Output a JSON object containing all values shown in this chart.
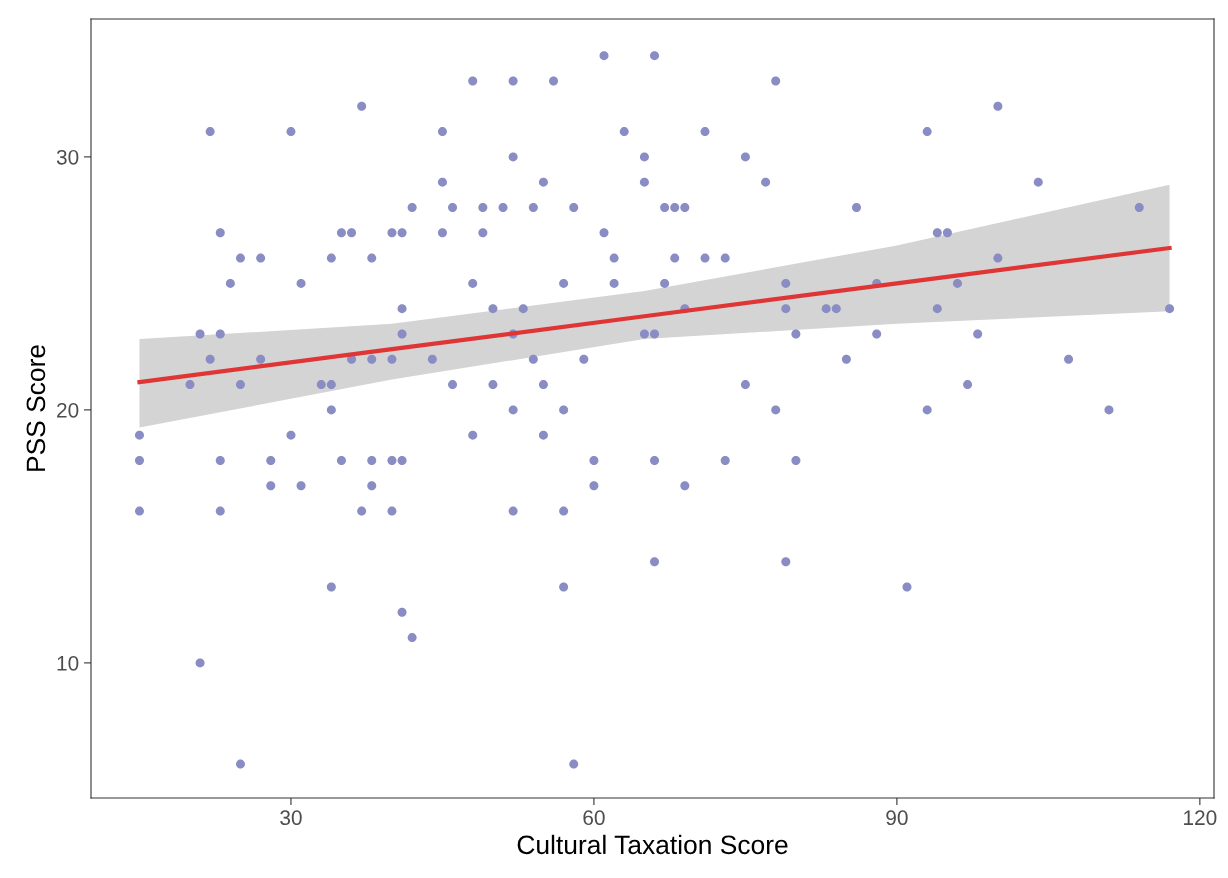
{
  "chart_data": {
    "type": "scatter",
    "xlabel": "Cultural Taxation Score",
    "ylabel": "PSS Score",
    "xlim": [
      10.2,
      121.4
    ],
    "ylim": [
      4.66,
      35.45
    ],
    "xticks": [
      30,
      60,
      90,
      120
    ],
    "yticks": [
      10,
      20,
      30
    ],
    "grid": false,
    "legend": false,
    "marker": "circle",
    "series": [
      {
        "color": "#8a8cc4",
        "x": [
          61,
          66,
          48,
          52,
          56,
          78,
          37,
          100,
          22,
          30,
          45,
          63,
          71,
          93,
          52,
          65,
          75,
          45,
          55,
          65,
          77,
          104,
          42,
          46,
          49,
          51,
          54,
          58,
          67,
          68,
          69,
          86,
          114,
          23,
          35,
          36,
          40,
          41,
          45,
          49,
          61,
          94,
          95,
          25,
          27,
          34,
          38,
          62,
          68,
          71,
          73,
          100,
          24,
          31,
          48,
          57,
          62,
          67,
          79,
          88,
          96,
          41,
          50,
          53,
          69,
          79,
          83,
          84,
          94,
          117,
          21,
          23,
          41,
          52,
          65,
          66,
          80,
          88,
          98,
          22,
          27,
          36,
          38,
          40,
          44,
          54,
          59,
          85,
          107,
          20,
          25,
          33,
          34,
          46,
          50,
          55,
          75,
          97,
          34,
          52,
          57,
          78,
          93,
          111,
          15,
          30,
          48,
          55,
          15,
          23,
          28,
          35,
          38,
          40,
          41,
          60,
          66,
          73,
          80,
          28,
          31,
          38,
          60,
          69,
          15,
          23,
          37,
          40,
          52,
          57,
          66,
          79,
          34,
          57,
          91,
          41,
          42,
          21,
          25,
          58
        ],
        "values": [
          34,
          34,
          33,
          33,
          33,
          33,
          32,
          32,
          31,
          31,
          31,
          31,
          31,
          31,
          30,
          30,
          30,
          29,
          29,
          29,
          29,
          29,
          28,
          28,
          28,
          28,
          28,
          28,
          28,
          28,
          28,
          28,
          28,
          27,
          27,
          27,
          27,
          27,
          27,
          27,
          27,
          27,
          27,
          26,
          26,
          26,
          26,
          26,
          26,
          26,
          26,
          26,
          25,
          25,
          25,
          25,
          25,
          25,
          25,
          25,
          25,
          24,
          24,
          24,
          24,
          24,
          24,
          24,
          24,
          24,
          23,
          23,
          23,
          23,
          23,
          23,
          23,
          23,
          23,
          22,
          22,
          22,
          22,
          22,
          22,
          22,
          22,
          22,
          22,
          21,
          21,
          21,
          21,
          21,
          21,
          21,
          21,
          21,
          20,
          20,
          20,
          20,
          20,
          20,
          19,
          19,
          19,
          19,
          18,
          18,
          18,
          18,
          18,
          18,
          18,
          18,
          18,
          18,
          18,
          17,
          17,
          17,
          17,
          17,
          16,
          16,
          16,
          16,
          16,
          16,
          14,
          14,
          13,
          13,
          13,
          12,
          11,
          10,
          6,
          6
        ]
      },
      {
        "type": "line",
        "color": "#e03535",
        "line_style": "solid",
        "marker": "none",
        "x": [
          15,
          40,
          65,
          90,
          117
        ],
        "values": [
          21.1,
          22.4,
          23.7,
          25.0,
          26.4
        ],
        "lower": [
          19.3,
          21.2,
          22.8,
          23.4,
          23.9
        ],
        "upper": [
          22.8,
          23.4,
          24.7,
          26.5,
          28.9
        ]
      }
    ]
  }
}
